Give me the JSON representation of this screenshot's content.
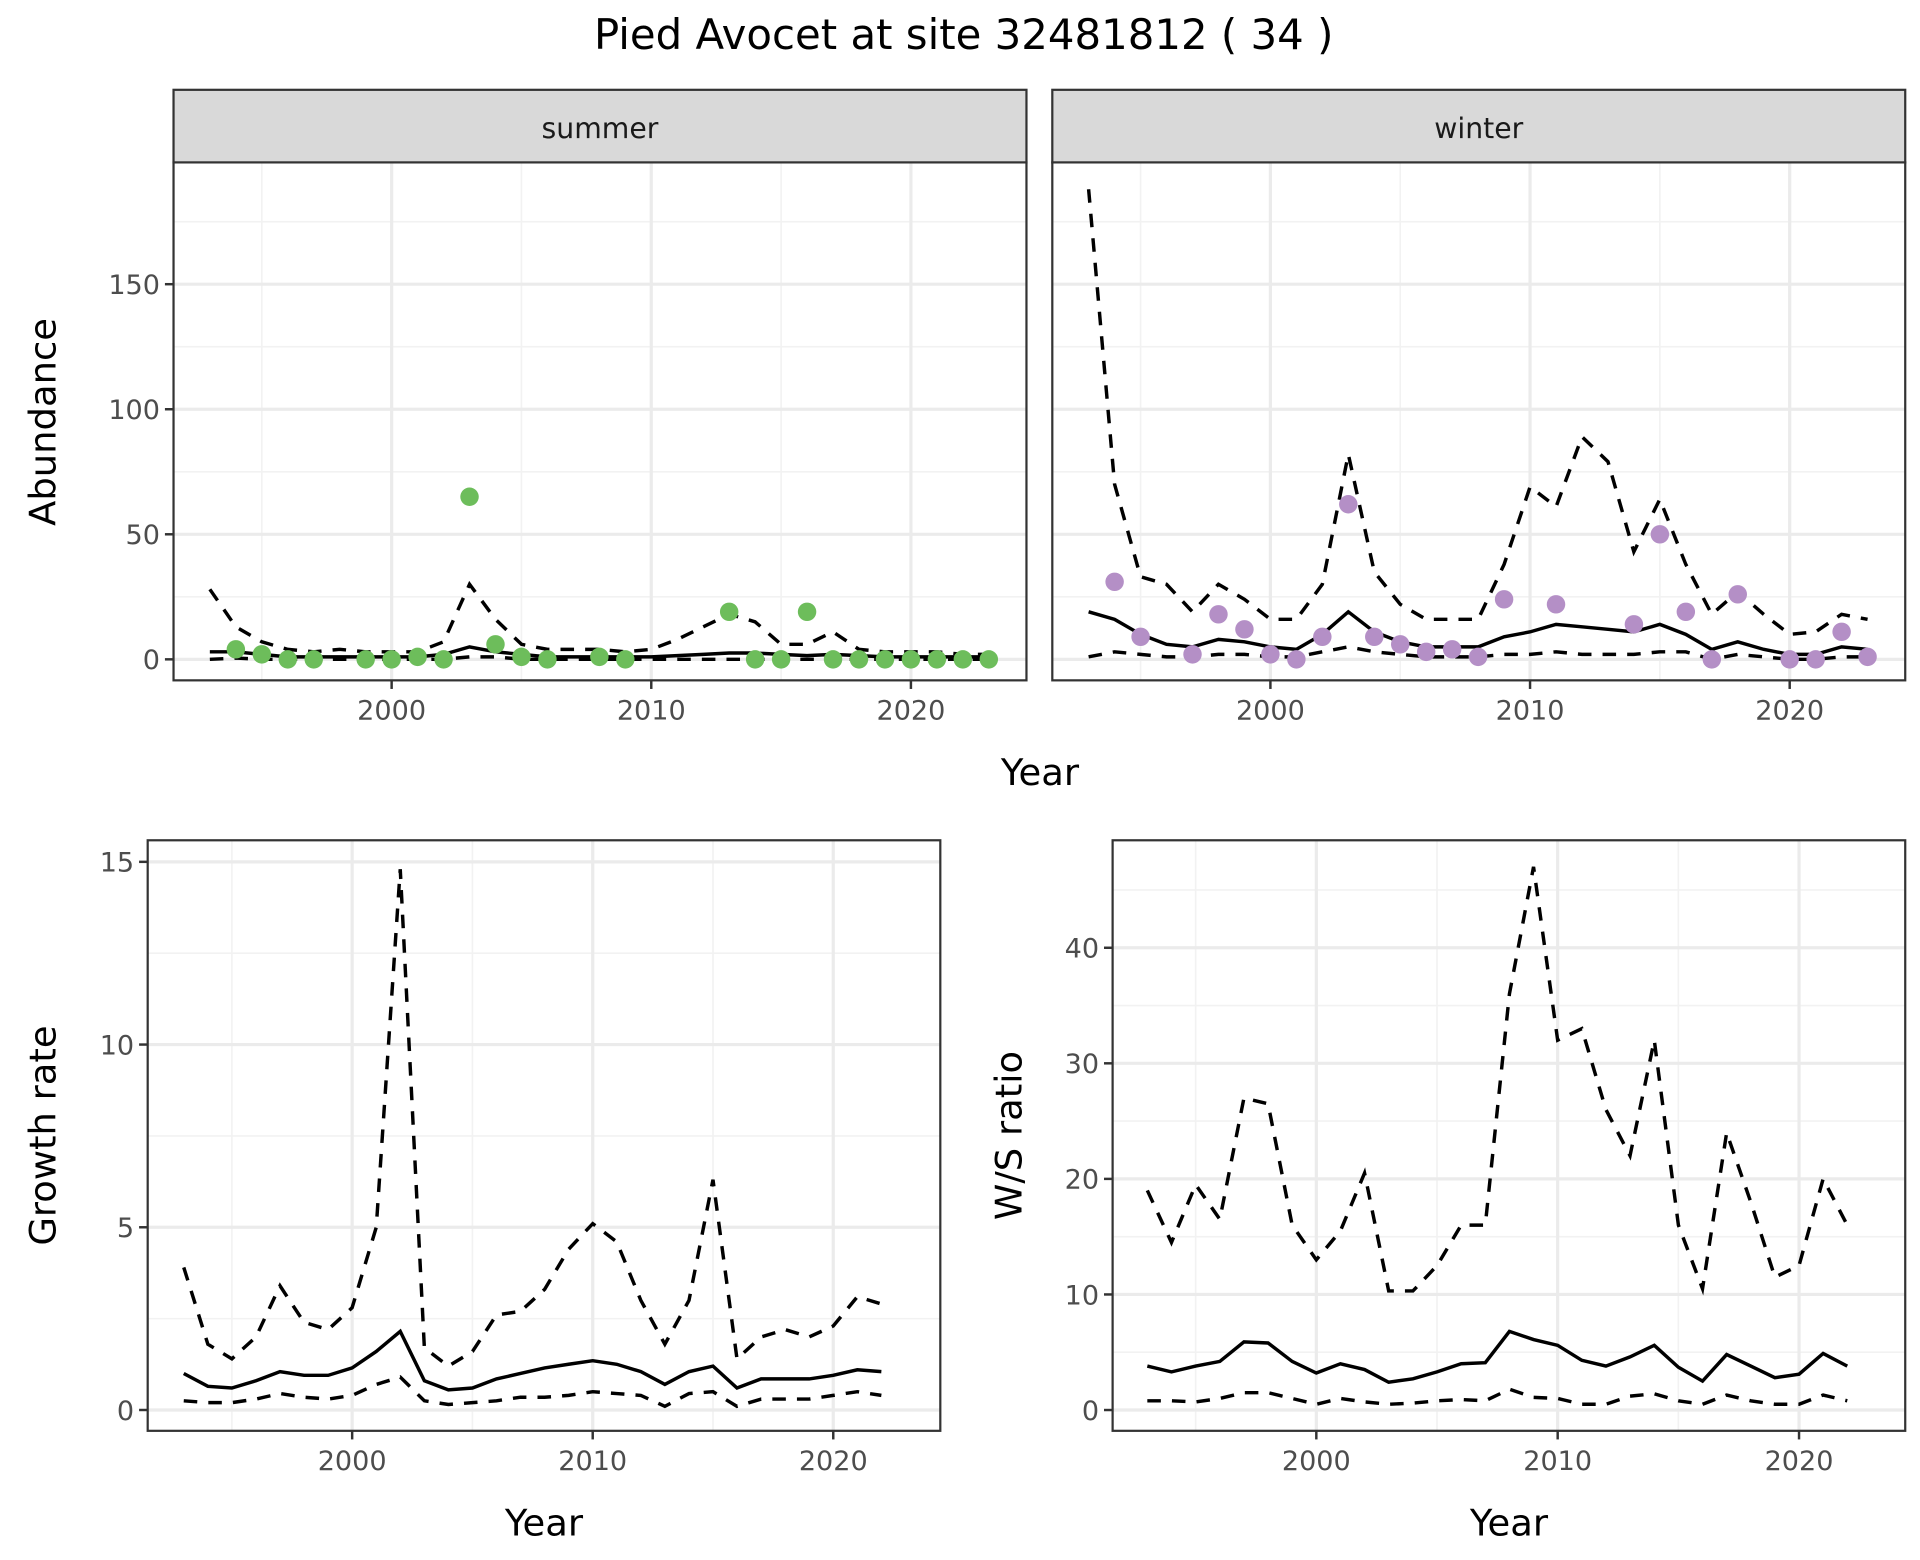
{
  "title": "Pied Avocet at site 32481812 ( 34 )",
  "chart_data": [
    {
      "type": "line",
      "panel": "abundance-summer",
      "strip": "summer",
      "xlabel": "Year",
      "ylabel": "Abundance",
      "xlim": [
        1991.6,
        2024.45
      ],
      "ylim": [
        -8.4,
        198.7
      ],
      "xticks": [
        2000,
        2010,
        2020
      ],
      "yticks": [
        0,
        50,
        100,
        150
      ],
      "grid": true,
      "point_color": "#6dbd5b",
      "x": [
        1993,
        1994,
        1995,
        1996,
        1997,
        1998,
        1999,
        2000,
        2001,
        2002,
        2003,
        2004,
        2005,
        2006,
        2007,
        2008,
        2009,
        2010,
        2011,
        2012,
        2013,
        2014,
        2015,
        2016,
        2017,
        2018,
        2019,
        2020,
        2021,
        2022,
        2023
      ],
      "fit": [
        3,
        3,
        2,
        1,
        1,
        1,
        1,
        1,
        1,
        2,
        5,
        3,
        2,
        1,
        1,
        1,
        1,
        1,
        1.5,
        2,
        2.5,
        2.5,
        2,
        1.5,
        2,
        1.5,
        1,
        1,
        1,
        1,
        1
      ],
      "upper": [
        28,
        13,
        7,
        4,
        3,
        4,
        3,
        3,
        3,
        7,
        30,
        16,
        6,
        4,
        4,
        4,
        3,
        4,
        8,
        13,
        18,
        15,
        6,
        6,
        11,
        4,
        3,
        3,
        3,
        2,
        2
      ],
      "lower": [
        0,
        0.5,
        0,
        0,
        0,
        0,
        0,
        0,
        0,
        0,
        1,
        1,
        0,
        0,
        0,
        0,
        0,
        0,
        0,
        0,
        0,
        0,
        0,
        0,
        0,
        0,
        0,
        0,
        0,
        0,
        0
      ],
      "points": {
        "x": [
          1994,
          1995,
          1996,
          1997,
          1999,
          2000,
          2001,
          2002,
          2003,
          2004,
          2005,
          2006,
          2008,
          2009,
          2013,
          2014,
          2015,
          2016,
          2017,
          2018,
          2019,
          2020,
          2021,
          2022,
          2023
        ],
        "y": [
          4,
          2,
          0,
          0,
          0,
          0,
          1,
          0,
          65,
          6,
          1,
          0,
          1,
          0,
          19,
          0,
          0,
          19,
          0,
          0,
          0,
          0,
          0,
          0,
          0
        ]
      }
    },
    {
      "type": "line",
      "panel": "abundance-winter",
      "strip": "winter",
      "xlabel": "Year",
      "ylabel": "Abundance",
      "xlim": [
        1991.6,
        2024.45
      ],
      "ylim": [
        -8.4,
        198.7
      ],
      "xticks": [
        2000,
        2010,
        2020
      ],
      "yticks": [
        0,
        50,
        100,
        150
      ],
      "grid": true,
      "point_color": "#b48fc6",
      "x": [
        1993,
        1994,
        1995,
        1996,
        1997,
        1998,
        1999,
        2000,
        2001,
        2002,
        2003,
        2004,
        2005,
        2006,
        2007,
        2008,
        2009,
        2010,
        2011,
        2012,
        2013,
        2014,
        2015,
        2016,
        2017,
        2018,
        2019,
        2020,
        2021,
        2022,
        2023
      ],
      "fit": [
        19,
        16,
        10,
        6,
        5,
        8,
        7,
        5,
        4,
        10,
        19,
        11,
        7,
        5,
        5,
        5,
        9,
        11,
        14,
        13,
        12,
        11,
        14,
        10,
        4,
        7,
        4,
        2,
        2,
        5,
        4
      ],
      "upper": [
        188,
        70,
        33,
        30,
        19,
        30,
        24,
        16,
        16,
        30,
        82,
        35,
        22,
        16,
        16,
        16,
        38,
        69,
        61,
        89,
        79,
        43,
        64,
        38,
        18,
        27,
        18,
        10,
        11,
        18,
        16
      ],
      "lower": [
        1,
        3,
        2,
        1,
        1,
        2,
        2,
        1,
        1,
        3,
        5,
        3,
        2,
        1,
        1,
        1,
        2,
        2,
        3,
        2,
        2,
        2,
        3,
        3,
        0,
        2,
        1,
        0,
        0,
        1,
        1
      ],
      "points": {
        "x": [
          1994,
          1995,
          1997,
          1998,
          1999,
          2000,
          2001,
          2002,
          2003,
          2004,
          2005,
          2006,
          2007,
          2008,
          2009,
          2011,
          2014,
          2015,
          2016,
          2017,
          2018,
          2020,
          2021,
          2022,
          2023
        ],
        "y": [
          31,
          9,
          2,
          18,
          12,
          2,
          0,
          9,
          62,
          9,
          6,
          3,
          4,
          1,
          24,
          22,
          14,
          50,
          19,
          0,
          26,
          0,
          0,
          11,
          1
        ]
      }
    },
    {
      "type": "line",
      "panel": "growth-rate",
      "xlabel": "Year",
      "ylabel": "Growth rate",
      "xlim": [
        1991.5,
        2024.45
      ],
      "ylim": [
        -0.57,
        15.59
      ],
      "xticks": [
        2000,
        2010,
        2020
      ],
      "yticks": [
        0,
        5,
        10,
        15
      ],
      "grid": true,
      "x": [
        1993,
        1994,
        1995,
        1996,
        1997,
        1998,
        1999,
        2000,
        2001,
        2002,
        2003,
        2004,
        2005,
        2006,
        2007,
        2008,
        2009,
        2010,
        2011,
        2012,
        2013,
        2014,
        2015,
        2016,
        2017,
        2018,
        2019,
        2020,
        2021,
        2022
      ],
      "fit": [
        1.0,
        0.65,
        0.6,
        0.8,
        1.05,
        0.95,
        0.95,
        1.15,
        1.6,
        2.15,
        0.8,
        0.55,
        0.6,
        0.85,
        1.0,
        1.15,
        1.25,
        1.35,
        1.25,
        1.05,
        0.7,
        1.05,
        1.2,
        0.6,
        0.85,
        0.85,
        0.85,
        0.95,
        1.1,
        1.05
      ],
      "upper": [
        3.9,
        1.8,
        1.4,
        2.0,
        3.4,
        2.4,
        2.2,
        2.8,
        5.0,
        14.8,
        1.7,
        1.2,
        1.6,
        2.6,
        2.7,
        3.3,
        4.4,
        5.1,
        4.6,
        3.0,
        1.8,
        3.0,
        6.3,
        1.4,
        2.0,
        2.2,
        2.0,
        2.3,
        3.1,
        2.9
      ],
      "lower": [
        0.25,
        0.2,
        0.2,
        0.3,
        0.45,
        0.35,
        0.3,
        0.4,
        0.7,
        0.9,
        0.25,
        0.15,
        0.2,
        0.25,
        0.35,
        0.35,
        0.4,
        0.5,
        0.45,
        0.4,
        0.1,
        0.45,
        0.5,
        0.1,
        0.3,
        0.3,
        0.3,
        0.4,
        0.5,
        0.4
      ]
    },
    {
      "type": "line",
      "panel": "ws-ratio",
      "xlabel": "Year",
      "ylabel": "W/S ratio",
      "xlim": [
        1991.56,
        2024.4
      ],
      "ylim": [
        -1.8,
        49.3
      ],
      "xticks": [
        2000,
        2010,
        2020
      ],
      "yticks": [
        0,
        10,
        20,
        30,
        40
      ],
      "grid": true,
      "x": [
        1993,
        1994,
        1995,
        1996,
        1997,
        1998,
        1999,
        2000,
        2001,
        2002,
        2003,
        2004,
        2005,
        2006,
        2007,
        2008,
        2009,
        2010,
        2011,
        2012,
        2013,
        2014,
        2015,
        2016,
        2017,
        2018,
        2019,
        2020,
        2021,
        2022
      ],
      "fit": [
        3.8,
        3.3,
        3.8,
        4.2,
        5.9,
        5.8,
        4.2,
        3.2,
        4.0,
        3.5,
        2.4,
        2.7,
        3.3,
        4.0,
        4.1,
        6.8,
        6.1,
        5.6,
        4.3,
        3.8,
        4.6,
        5.6,
        3.7,
        2.5,
        4.8,
        3.8,
        2.8,
        3.1,
        4.9,
        3.8
      ],
      "upper": [
        19,
        14.5,
        19.5,
        16.5,
        27,
        26.5,
        16,
        13,
        15.5,
        20.5,
        10.3,
        10.3,
        12.5,
        16,
        16,
        36,
        47,
        32,
        33,
        26,
        22,
        32,
        16,
        10.5,
        24,
        18,
        11.5,
        12.5,
        20,
        16
      ],
      "lower": [
        0.8,
        0.8,
        0.7,
        1.0,
        1.5,
        1.5,
        1.0,
        0.5,
        1.0,
        0.7,
        0.5,
        0.6,
        0.8,
        0.9,
        0.8,
        1.8,
        1.1,
        1.0,
        0.5,
        0.5,
        1.2,
        1.4,
        0.8,
        0.5,
        1.3,
        0.8,
        0.5,
        0.5,
        1.3,
        0.8
      ]
    }
  ]
}
